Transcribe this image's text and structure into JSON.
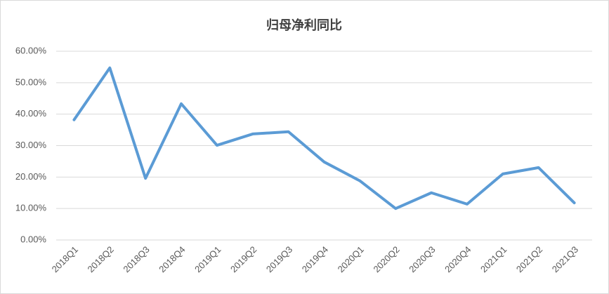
{
  "chart_data": {
    "type": "line",
    "title": "归母净利同比",
    "categories": [
      "2018Q1",
      "2018Q2",
      "2018Q3",
      "2018Q4",
      "2019Q1",
      "2019Q2",
      "2019Q3",
      "2019Q4",
      "2020Q1",
      "2020Q2",
      "2020Q3",
      "2020Q4",
      "2021Q1",
      "2021Q2",
      "2021Q3"
    ],
    "series": [
      {
        "color": "#5b9bd5",
        "values": [
          38.2,
          54.7,
          19.6,
          43.3,
          30.1,
          33.7,
          34.4,
          24.8,
          18.8,
          10.0,
          15.0,
          11.4,
          21.0,
          23.0,
          11.8
        ]
      }
    ],
    "ylim": [
      0,
      60
    ],
    "yticks": [
      {
        "value": 0,
        "label": "0.00%"
      },
      {
        "value": 10,
        "label": "10.00%"
      },
      {
        "value": 20,
        "label": "20.00%"
      },
      {
        "value": 30,
        "label": "30.00%"
      },
      {
        "value": 40,
        "label": "40.00%"
      },
      {
        "value": 50,
        "label": "50.00%"
      },
      {
        "value": 60,
        "label": "60.00%"
      }
    ],
    "grid": true
  }
}
